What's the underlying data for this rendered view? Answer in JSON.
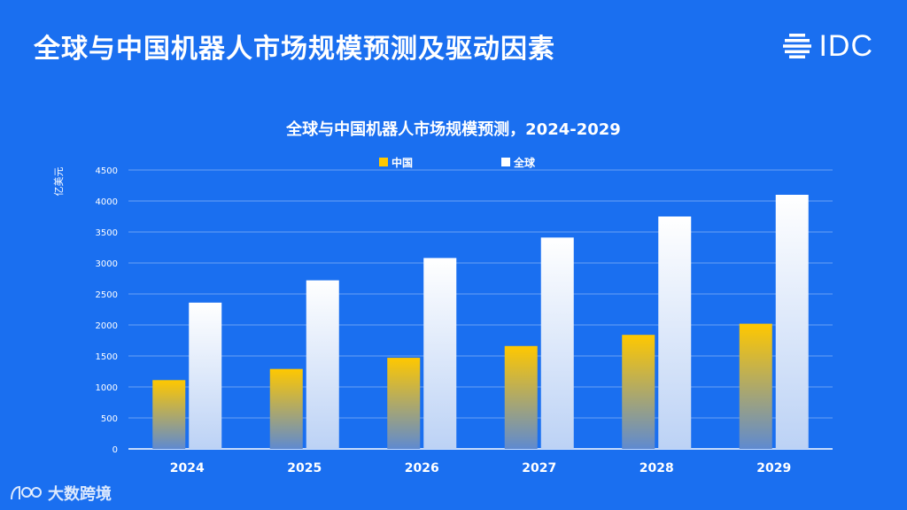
{
  "page": {
    "title": "全球与中国机器人市场规模预测及驱动因素",
    "logo_text": "IDC",
    "watermark_text": "大数跨境"
  },
  "colors": {
    "background": "#1a6ff0",
    "china_top": "#ffc800",
    "china_bottom": "#5f8ad0",
    "global_top": "#ffffff",
    "global_bottom": "#bcd2f5",
    "gridline": "#6aa2f5"
  },
  "chart_data": {
    "type": "bar",
    "title": "全球与中国机器人市场规模预测，2024-2029",
    "ylabel": "亿美元",
    "xlabel": "",
    "categories": [
      "2024",
      "2025",
      "2026",
      "2027",
      "2028",
      "2029"
    ],
    "series": [
      {
        "name": "中国",
        "values": [
          1110,
          1290,
          1470,
          1660,
          1840,
          2020
        ]
      },
      {
        "name": "全球",
        "values": [
          2360,
          2720,
          3080,
          3410,
          3750,
          4100
        ]
      }
    ],
    "ylim": [
      0,
      4500
    ],
    "yticks": [
      0,
      500,
      1000,
      1500,
      2000,
      2500,
      3000,
      3500,
      4000,
      4500
    ],
    "grid": true,
    "legend_position": "top-center"
  }
}
